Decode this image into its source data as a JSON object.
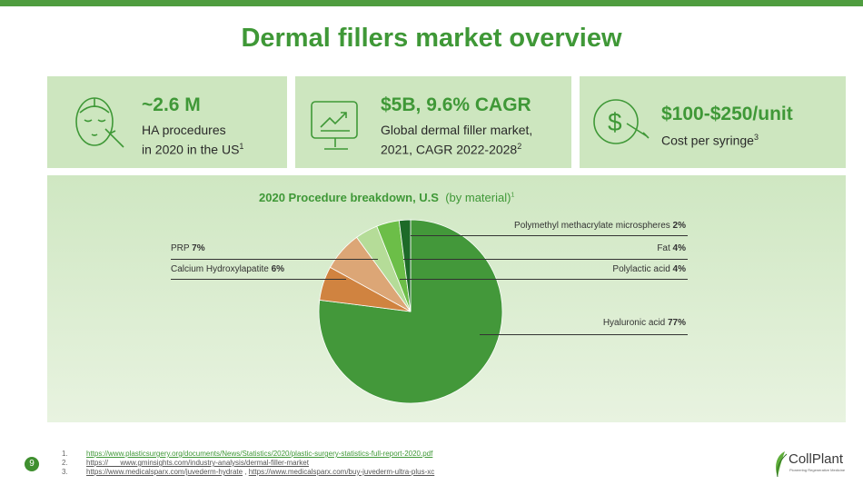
{
  "title": "Dermal fillers market overview",
  "cards": [
    {
      "headline": "~2.6 M",
      "line1": "HA procedures",
      "line2": "in 2020 in the US",
      "sup": "1",
      "icon": "face-syringe-icon"
    },
    {
      "headline": "$5B, 9.6% CAGR",
      "line1": "Global dermal filler market,",
      "line2": "2021, CAGR 2022-2028",
      "sup": "2",
      "icon": "monitor-chart-icon"
    },
    {
      "headline": "$100-$250/unit",
      "line1": "Cost per syringe",
      "sup": "3",
      "icon": "dollar-syringe-icon"
    }
  ],
  "chart_data": {
    "type": "pie",
    "title": "2020 Procedure breakdown, U.S",
    "title_note": "(by material)",
    "title_sup": "1",
    "slices": [
      {
        "name": "Hyaluronic acid",
        "value": 77,
        "label": "77%",
        "color": "#43983a"
      },
      {
        "name": "Calcium Hydroxylapatite",
        "value": 6,
        "label": "6%",
        "color": "#d08340"
      },
      {
        "name": "PRP",
        "value": 7,
        "label": "7%",
        "color": "#dca676"
      },
      {
        "name": "Polylactic acid",
        "value": 4,
        "label": "4%",
        "color": "#b5dc98"
      },
      {
        "name": "Fat",
        "value": 4,
        "label": "4%",
        "color": "#6cbe48"
      },
      {
        "name": "Polymethyl methacrylate microspheres",
        "value": 2,
        "label": "2%",
        "color": "#1d6a28"
      }
    ]
  },
  "page_number": "9",
  "references": [
    {
      "n": "1.",
      "links": [
        "https://www.plasticsurgery.org/documents/News/Statistics/2020/plastic-surgery-statistics-full-report-2020.pdf"
      ]
    },
    {
      "n": "2.",
      "links": [
        "https://      www.gminsights.com/industry-analysis/dermal-filler-market"
      ]
    },
    {
      "n": "3.",
      "links": [
        "https://www.medicalsparx.com/juvederm-hydrate",
        "https://www.medicalsparx.com/buy-juvederm-ultra-plus-xc"
      ]
    }
  ],
  "logo": {
    "name": "CollPlant",
    "tagline": "Pioneering Regenerative Medicine"
  }
}
